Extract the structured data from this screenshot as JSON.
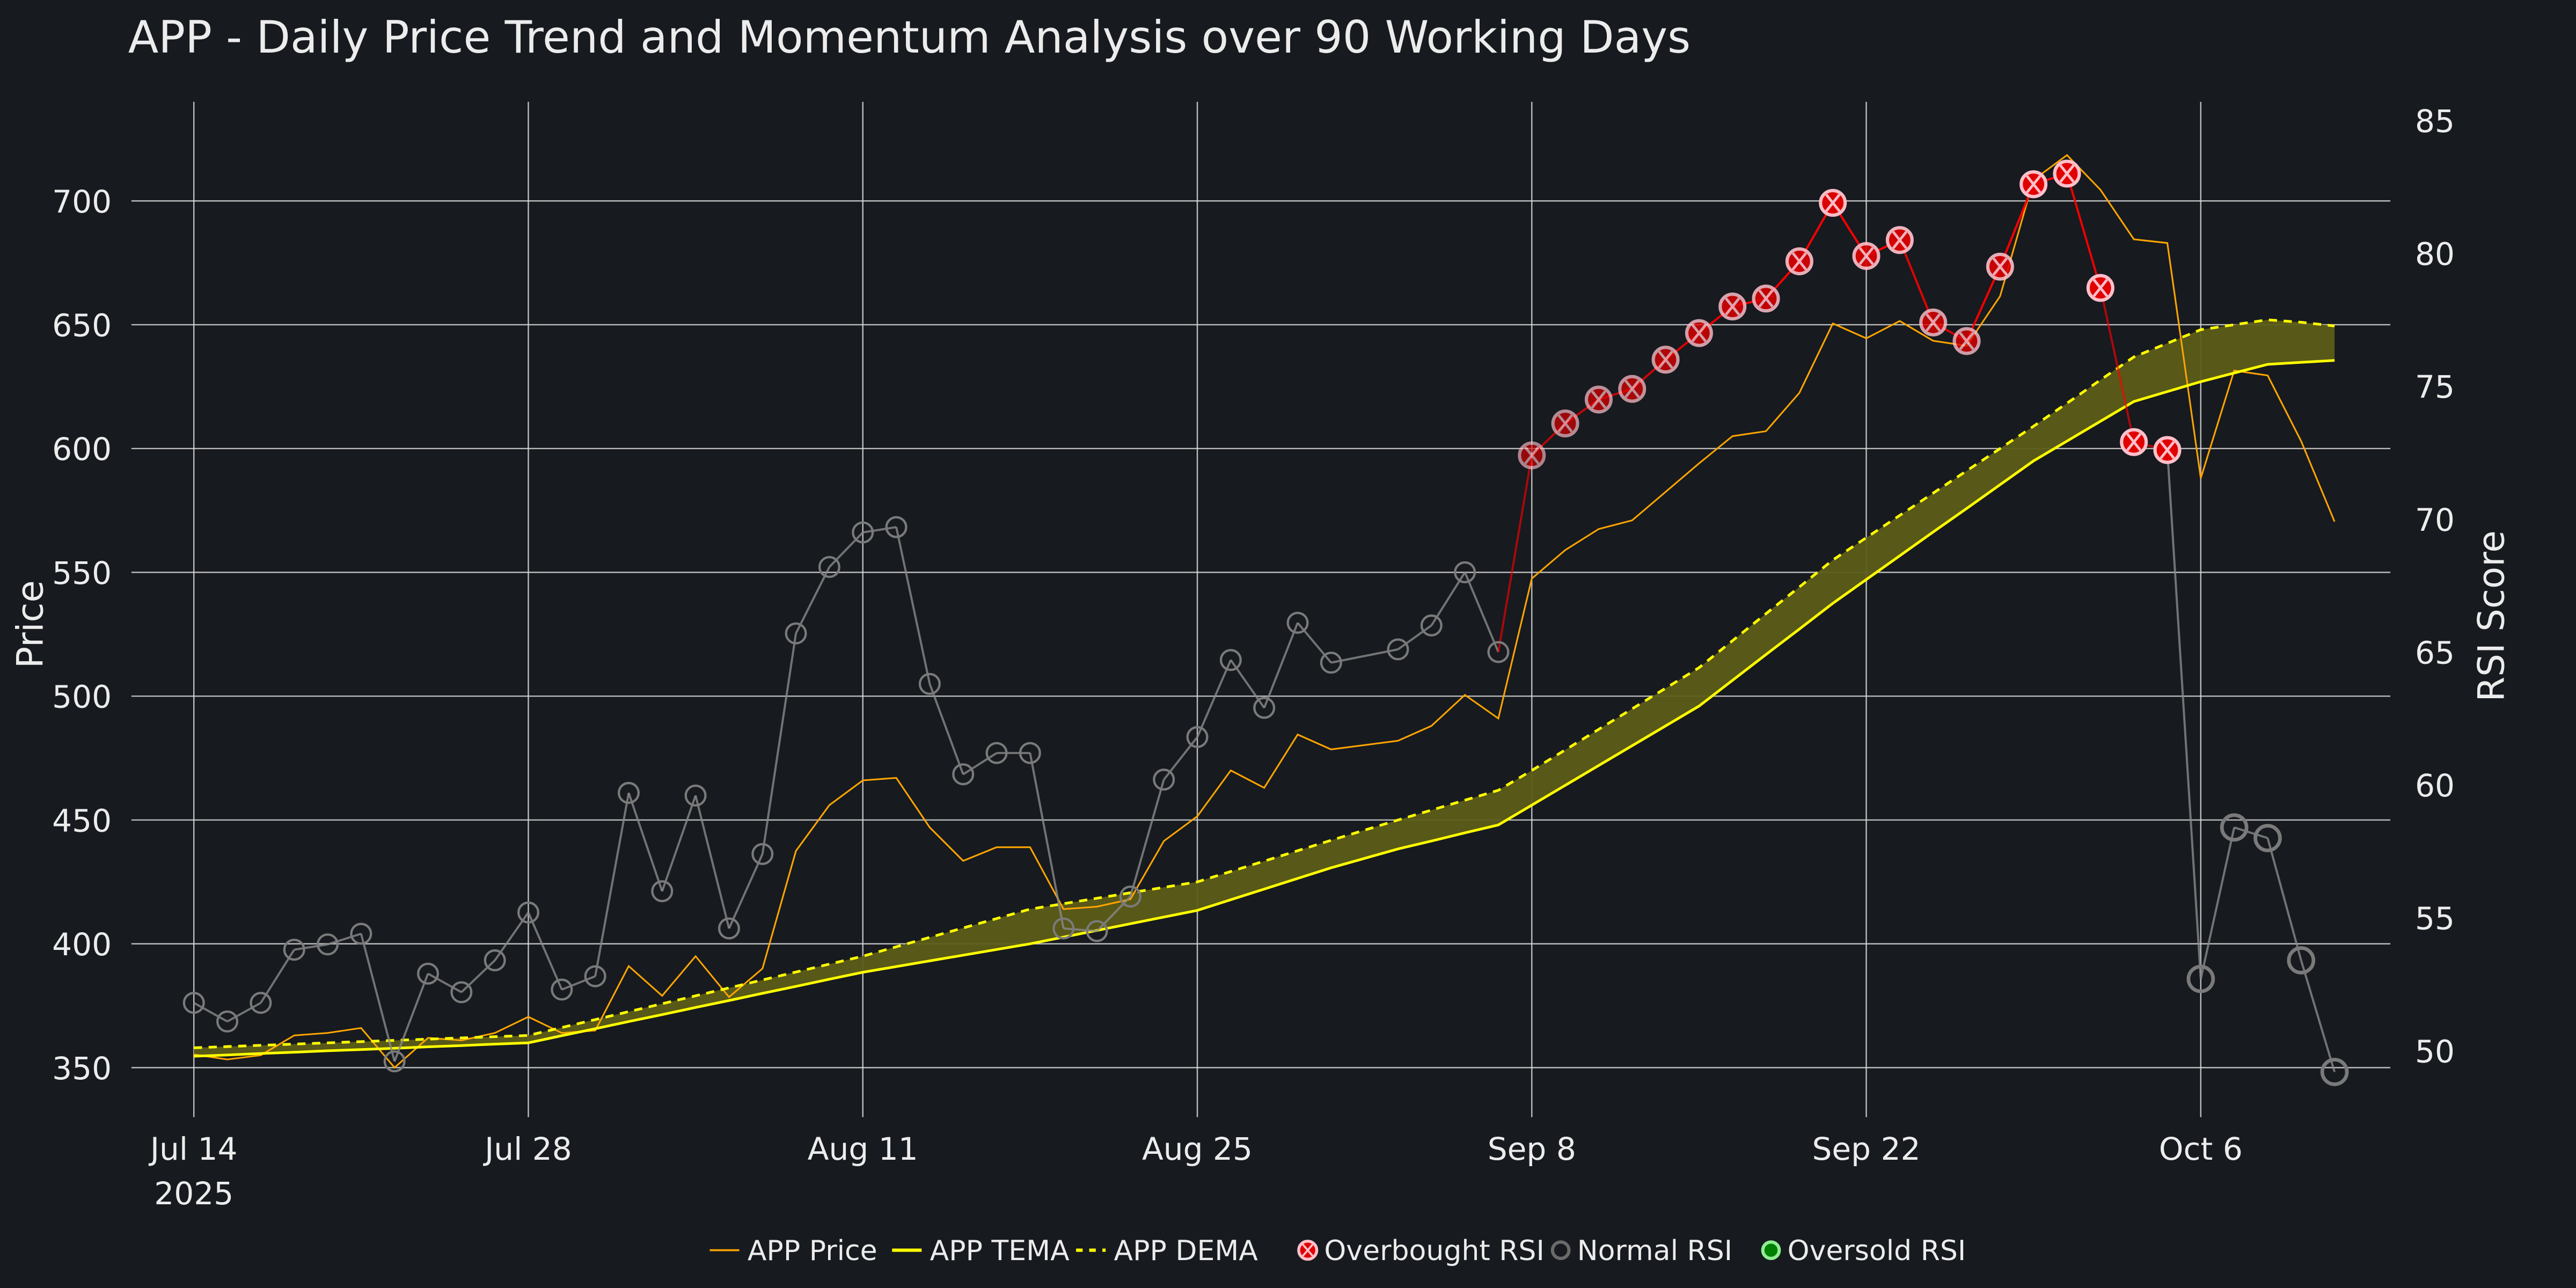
{
  "chart_data": {
    "type": "line",
    "title": "APP - Daily Price Trend and Momentum Analysis over 90 Working Days",
    "xlabel": "",
    "ylabel": "Price",
    "y2label": "RSI Score",
    "ylim": [
      330,
      740
    ],
    "y2lim": [
      47.5,
      85.7
    ],
    "yticks": [
      350,
      400,
      450,
      500,
      550,
      600,
      650,
      700
    ],
    "y2ticks": [
      50,
      55,
      60,
      65,
      70,
      75,
      80,
      85
    ],
    "xticks": [
      {
        "date": "2025-07-14",
        "label": "Jul 14",
        "sublabel": "2025"
      },
      {
        "date": "2025-07-28",
        "label": "Jul 28"
      },
      {
        "date": "2025-08-11",
        "label": "Aug 11"
      },
      {
        "date": "2025-08-25",
        "label": "Aug 25"
      },
      {
        "date": "2025-09-08",
        "label": "Sep 8"
      },
      {
        "date": "2025-09-22",
        "label": "Sep 22"
      },
      {
        "date": "2025-10-06",
        "label": "Oct 6"
      }
    ],
    "grid": true,
    "legend_position": "bottom-center",
    "overbought_threshold": 70,
    "oversold_threshold": 30,
    "x": [
      "2025-07-14",
      "2025-07-15",
      "2025-07-16",
      "2025-07-17",
      "2025-07-18",
      "2025-07-21",
      "2025-07-22",
      "2025-07-23",
      "2025-07-24",
      "2025-07-25",
      "2025-07-28",
      "2025-07-29",
      "2025-07-30",
      "2025-07-31",
      "2025-08-01",
      "2025-08-04",
      "2025-08-05",
      "2025-08-06",
      "2025-08-07",
      "2025-08-08",
      "2025-08-11",
      "2025-08-12",
      "2025-08-13",
      "2025-08-14",
      "2025-08-15",
      "2025-08-18",
      "2025-08-19",
      "2025-08-20",
      "2025-08-21",
      "2025-08-22",
      "2025-08-25",
      "2025-08-26",
      "2025-08-27",
      "2025-08-28",
      "2025-08-29",
      "2025-09-01",
      "2025-09-02",
      "2025-09-03",
      "2025-09-04",
      "2025-09-05",
      "2025-09-08",
      "2025-09-09",
      "2025-09-10",
      "2025-09-11",
      "2025-09-12",
      "2025-09-15",
      "2025-09-16",
      "2025-09-17",
      "2025-09-18",
      "2025-09-19",
      "2025-09-22",
      "2025-09-23",
      "2025-09-24",
      "2025-09-25",
      "2025-09-26",
      "2025-09-29",
      "2025-09-30",
      "2025-10-01",
      "2025-10-02",
      "2025-10-03",
      "2025-10-06",
      "2025-10-07",
      "2025-10-08",
      "2025-10-09",
      "2025-10-10"
    ],
    "series": [
      {
        "name": "APP Price",
        "color": "#ffa500",
        "axis": "y",
        "values": [
          355.3,
          353.3,
          355,
          363,
          364,
          366,
          350,
          362,
          361,
          364,
          370.5,
          364,
          365,
          391,
          379,
          395,
          378.5,
          390,
          437.5,
          456,
          466,
          467,
          447,
          433.5,
          439,
          439,
          414,
          415,
          418,
          441.5,
          451.5,
          470,
          463,
          484.5,
          478.5,
          null,
          482,
          488,
          500.5,
          491,
          547.5,
          559,
          567.5,
          571,
          582.5,
          594,
          605,
          607,
          622.5,
          650.5,
          644.5,
          651.5,
          643.5,
          641.5,
          661.5,
          708.5,
          718.5,
          704.5,
          684.5,
          683,
          588,
          631.5,
          629.5,
          603,
          570.5
        ]
      },
      {
        "name": "APP TEMA",
        "color": "#ffff00",
        "axis": "y",
        "values": [
          354.6,
          355.1,
          355.7,
          356.2,
          356.8,
          357.3,
          357.8,
          358.4,
          358.9,
          359.5,
          360,
          362.9,
          365.7,
          368.6,
          371.4,
          374.3,
          377.1,
          380,
          382.8,
          385.7,
          388.5,
          390.8,
          393.1,
          395.4,
          397.7,
          400,
          402.7,
          405.4,
          408.1,
          410.8,
          413.5,
          417.8,
          422.1,
          426.4,
          430.7,
          null,
          438.3,
          441.5,
          444.8,
          448,
          456,
          464,
          472,
          480,
          488,
          496,
          506.4,
          516.8,
          527.1,
          537.5,
          547.1,
          556.7,
          566.3,
          575.8,
          585.4,
          595,
          603,
          611,
          619,
          623,
          627,
          630.5,
          634,
          634.8,
          635.6
        ]
      },
      {
        "name": "APP DEMA",
        "color": "#ffff00",
        "dash": true,
        "fill": "#5c5c18",
        "axis": "y",
        "values": [
          358,
          358.5,
          359,
          359.5,
          360,
          360.5,
          361,
          361.5,
          362,
          362.5,
          363,
          366.2,
          369.4,
          372.6,
          375.8,
          379,
          382.2,
          385.4,
          388.6,
          391.8,
          395,
          398.8,
          402.6,
          406.4,
          410.2,
          414,
          416.2,
          418.4,
          420.6,
          422.8,
          425,
          429.2,
          433.4,
          437.6,
          441.8,
          null,
          450,
          454,
          458,
          462,
          470,
          478.3,
          486.6,
          494.9,
          503.2,
          511.5,
          522.4,
          533.3,
          544.1,
          555,
          564,
          573,
          582,
          591,
          600,
          609,
          618.3,
          627.7,
          637,
          642.5,
          648,
          650,
          652,
          651,
          649.5
        ]
      },
      {
        "name": "RSI",
        "axis": "y2",
        "values": [
          51.8,
          51.1,
          51.8,
          53.8,
          54.0,
          54.4,
          49.6,
          52.9,
          52.2,
          53.4,
          55.2,
          52.3,
          52.8,
          59.7,
          56.0,
          59.6,
          54.6,
          57.4,
          65.7,
          68.2,
          69.5,
          69.7,
          63.8,
          60.4,
          61.2,
          61.2,
          54.6,
          54.5,
          55.8,
          60.2,
          61.8,
          64.7,
          62.9,
          66.1,
          64.6,
          null,
          65.1,
          66.0,
          68.0,
          65.0,
          72.4,
          73.6,
          74.5,
          74.9,
          76.0,
          77.0,
          78.0,
          78.3,
          79.7,
          81.9,
          79.9,
          80.5,
          77.4,
          76.7,
          79.5,
          82.6,
          83.0,
          78.7,
          72.9,
          72.6,
          52.7,
          58.4,
          58.0,
          53.4,
          49.2
        ]
      }
    ],
    "legend": [
      {
        "label": "APP Price",
        "symbol": "line",
        "color": "#ffa500"
      },
      {
        "label": "APP TEMA",
        "symbol": "line",
        "color": "#ffff00"
      },
      {
        "label": "APP DEMA",
        "symbol": "dash",
        "color": "#ffff00"
      },
      {
        "label": "Overbought RSI",
        "symbol": "circle-x",
        "color": "#ff0000"
      },
      {
        "label": "Normal RSI",
        "symbol": "circle-open",
        "color": "#808080"
      },
      {
        "label": "Oversold RSI",
        "symbol": "circle",
        "color": "#90ee90"
      }
    ],
    "colors": {
      "background": "#171a1f",
      "grid": "#d8d8d8",
      "text": "#ececec",
      "overbought": "#ff0000",
      "normal": "#808080",
      "oversold": "#90ee90",
      "fill": "#5c5c18"
    }
  }
}
